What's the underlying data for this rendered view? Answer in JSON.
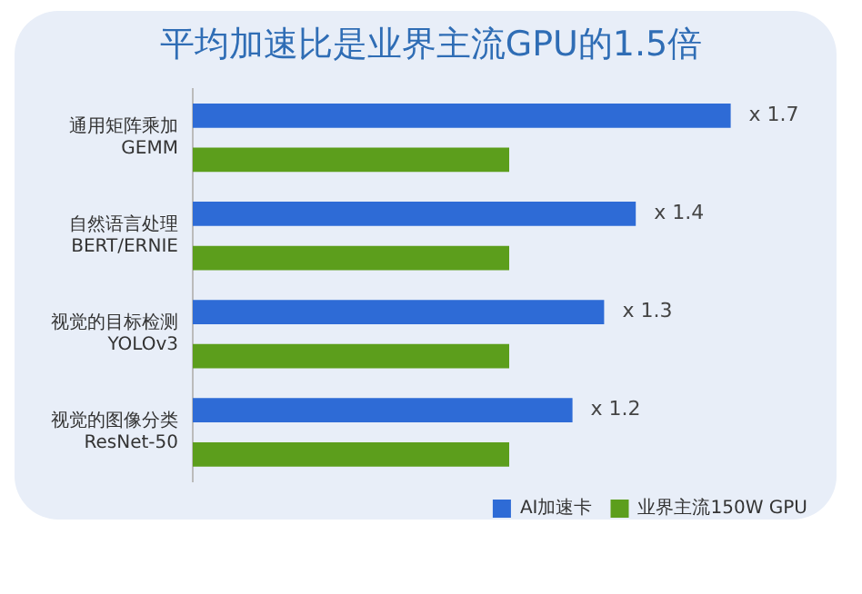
{
  "chart_data": {
    "type": "bar",
    "orientation": "horizontal",
    "title": "平均加速比是业界主流GPU的1.5倍",
    "categories": [
      "通用矩阵乘加\nGEMM",
      "自然语言处理\nBERT/ERNIE",
      "视觉的目标检测\nYOLOv3",
      "视觉的图像分类\nResNet-50"
    ],
    "series": [
      {
        "name": "AI加速卡",
        "color": "#2e6bd6",
        "values": [
          1.7,
          1.4,
          1.3,
          1.2
        ],
        "value_labels": [
          "x 1.7",
          "x 1.4",
          "x 1.3",
          "x 1.2"
        ]
      },
      {
        "name": "业界主流150W GPU",
        "color": "#5c9e1c",
        "values": [
          1,
          1,
          1,
          1
        ]
      }
    ],
    "grid": false,
    "legend": "bottom right",
    "tick_labels": "y"
  }
}
